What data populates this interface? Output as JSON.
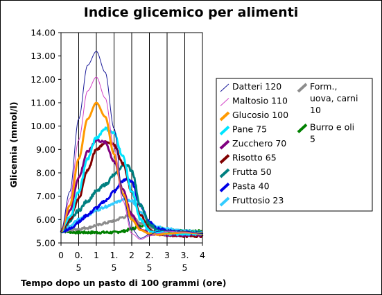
{
  "chart_data": {
    "type": "line",
    "title": "Indice glicemico per alimenti",
    "xlabel": "Tempo dopo un pasto di 100 grammi (ore)",
    "ylabel": "Glicemia (mmol/l)",
    "xlim": [
      0,
      4
    ],
    "ylim": [
      5,
      14
    ],
    "x_ticks": [
      0,
      0.5,
      1,
      1.5,
      2,
      2.5,
      3,
      3.5,
      4
    ],
    "x_tick_labels": [
      [
        "0"
      ],
      [
        "0.",
        "5"
      ],
      [
        "1"
      ],
      [
        "1.",
        "5"
      ],
      [
        "2"
      ],
      [
        "2.",
        "5"
      ],
      [
        "3"
      ],
      [
        "3.",
        "5"
      ],
      [
        "4"
      ]
    ],
    "y_ticks": [
      5,
      6,
      7,
      8,
      9,
      10,
      11,
      12,
      13,
      14
    ],
    "y_tick_labels": [
      "5.00",
      "6.00",
      "7.00",
      "8.00",
      "9.00",
      "10.00",
      "11.00",
      "12.00",
      "13.00",
      "14.00"
    ],
    "grid": "vertical",
    "legend_position": "right",
    "legend_columns": [
      [
        "Datteri 120",
        "Maltosio 110",
        "Glucosio 100",
        "Pane 75",
        "Zucchero 70",
        "Risotto 65",
        "Frutta 50",
        "Pasta 40",
        "Fruttosio 23"
      ],
      [
        "Form., uova, carni 10",
        "Burro e oli 5"
      ]
    ],
    "series": [
      {
        "name": "Datteri 120",
        "color": "#1a1a99",
        "width": 1,
        "noise": 0,
        "x": [
          0,
          0.25,
          0.5,
          0.75,
          1.0,
          1.25,
          1.5,
          1.75,
          2.0,
          2.25,
          2.5,
          2.75,
          3.0,
          3.5,
          4.0
        ],
        "y": [
          5.5,
          7.2,
          10.3,
          12.6,
          13.2,
          12.3,
          9.9,
          7.0,
          5.6,
          5.2,
          5.35,
          5.5,
          5.55,
          5.5,
          5.4
        ]
      },
      {
        "name": "Maltosio 110",
        "color": "#d23fc6",
        "width": 1,
        "noise": 0,
        "x": [
          0,
          0.25,
          0.5,
          0.75,
          1.0,
          1.25,
          1.5,
          1.75,
          2.0,
          2.25,
          2.5,
          2.75,
          3.0,
          3.5,
          4.0
        ],
        "y": [
          5.5,
          6.9,
          9.4,
          11.5,
          12.1,
          11.2,
          9.1,
          6.8,
          5.4,
          5.15,
          5.3,
          5.4,
          5.5,
          5.45,
          5.4
        ]
      },
      {
        "name": "Glucosio 100",
        "color": "#ff9900",
        "width": 3,
        "noise": 0,
        "x": [
          0,
          0.25,
          0.5,
          0.75,
          1.0,
          1.25,
          1.5,
          1.75,
          2.0,
          2.25,
          2.5,
          2.75,
          3.0,
          3.5,
          4.0
        ],
        "y": [
          5.5,
          6.6,
          8.6,
          10.3,
          11.0,
          10.4,
          8.8,
          7.1,
          6.0,
          5.55,
          5.4,
          5.35,
          5.4,
          5.45,
          5.4
        ]
      },
      {
        "name": "Pane 75",
        "color": "#00e5ff",
        "width": 3,
        "noise": 0.06,
        "x": [
          0,
          0.25,
          0.5,
          0.75,
          1.0,
          1.25,
          1.5,
          1.75,
          2.0,
          2.25,
          2.5,
          3.0,
          3.5,
          4.0
        ],
        "y": [
          5.5,
          6.1,
          7.2,
          8.6,
          9.5,
          9.9,
          9.7,
          8.7,
          7.2,
          6.0,
          5.5,
          5.4,
          5.4,
          5.4
        ]
      },
      {
        "name": "Zucchero 70",
        "color": "#800080",
        "width": 3,
        "noise": 0.05,
        "x": [
          0,
          0.25,
          0.5,
          0.75,
          1.0,
          1.25,
          1.5,
          1.75,
          2.0,
          2.25,
          2.5,
          3.0,
          3.5,
          4.0
        ],
        "y": [
          5.5,
          6.4,
          7.8,
          8.9,
          9.4,
          9.3,
          8.5,
          7.3,
          6.2,
          5.6,
          5.4,
          5.35,
          5.35,
          5.35
        ]
      },
      {
        "name": "Risotto 65",
        "color": "#800000",
        "width": 3,
        "noise": 0.05,
        "x": [
          0,
          0.25,
          0.5,
          0.75,
          1.0,
          1.25,
          1.5,
          1.75,
          2.0,
          2.25,
          2.5,
          2.75,
          3.0,
          3.5,
          4.0
        ],
        "y": [
          5.5,
          6.0,
          6.9,
          8.1,
          9.0,
          9.3,
          9.2,
          8.4,
          7.2,
          6.2,
          5.6,
          5.4,
          5.35,
          5.3,
          5.3
        ]
      },
      {
        "name": "Frutta 50",
        "color": "#008080",
        "width": 3,
        "noise": 0.07,
        "x": [
          0,
          0.25,
          0.5,
          0.75,
          1.0,
          1.25,
          1.5,
          1.75,
          1.85,
          2.0,
          2.25,
          2.5,
          2.75,
          3.0,
          3.5,
          4.0
        ],
        "y": [
          5.5,
          5.9,
          6.4,
          6.8,
          7.2,
          7.5,
          7.9,
          8.3,
          8.35,
          8.1,
          6.6,
          5.8,
          5.5,
          5.45,
          5.45,
          5.4
        ]
      },
      {
        "name": "Pasta 40",
        "color": "#0000e6",
        "width": 3,
        "noise": 0.06,
        "x": [
          0,
          0.25,
          0.5,
          0.75,
          1.0,
          1.25,
          1.5,
          1.75,
          1.9,
          2.0,
          2.25,
          2.5,
          2.75,
          3.0,
          3.5,
          4.0
        ],
        "y": [
          5.5,
          5.6,
          5.9,
          6.2,
          6.5,
          6.8,
          7.2,
          7.65,
          7.75,
          7.6,
          6.6,
          5.9,
          5.6,
          5.5,
          5.45,
          5.4
        ]
      },
      {
        "name": "Fruttosio 23",
        "color": "#33ccff",
        "width": 3,
        "noise": 0.05,
        "x": [
          0,
          0.25,
          0.5,
          0.75,
          1.0,
          1.25,
          1.5,
          1.75,
          2.0,
          2.25,
          2.5,
          2.75,
          3.0,
          3.5,
          4.0
        ],
        "y": [
          5.5,
          5.7,
          6.0,
          6.2,
          6.4,
          6.55,
          6.7,
          6.85,
          6.8,
          6.3,
          5.9,
          5.7,
          5.6,
          5.5,
          5.45
        ]
      },
      {
        "name": "Form., uova, carni 10",
        "color": "#8c8c8c",
        "width": 3,
        "noise": 0.05,
        "x": [
          0,
          0.25,
          0.5,
          0.75,
          1.0,
          1.25,
          1.5,
          1.75,
          1.9,
          2.0,
          2.25,
          2.5,
          2.75,
          3.0,
          3.5,
          4.0
        ],
        "y": [
          5.5,
          5.55,
          5.6,
          5.65,
          5.75,
          5.85,
          5.95,
          6.1,
          6.15,
          6.1,
          5.85,
          5.7,
          5.6,
          5.55,
          5.5,
          5.45
        ]
      },
      {
        "name": "Burro e oli 5",
        "color": "#008000",
        "width": 3,
        "noise": 0.05,
        "x": [
          0,
          0.5,
          1.0,
          1.5,
          1.75,
          2.0,
          2.25,
          2.5,
          2.75,
          3.0,
          3.5,
          4.0
        ],
        "y": [
          5.5,
          5.45,
          5.45,
          5.45,
          5.5,
          5.6,
          5.75,
          5.8,
          5.65,
          5.55,
          5.5,
          5.5
        ]
      }
    ]
  }
}
